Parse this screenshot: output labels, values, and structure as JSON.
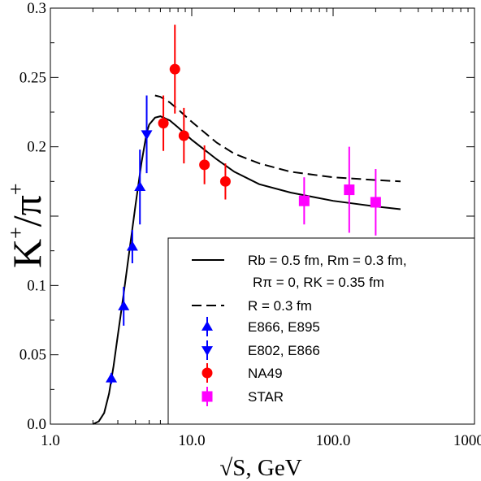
{
  "chart_data": {
    "type": "scatter",
    "xlabel": "√S, GeV",
    "ylabel_main": "K",
    "ylabel_denominator": "π",
    "ylabel_sup": "+",
    "x_scale": "log",
    "xlim": [
      1.0,
      1000.0
    ],
    "ylim": [
      0.0,
      0.3
    ],
    "x_ticks": [
      1.0,
      10.0,
      100.0,
      1000.0
    ],
    "x_tick_labels": [
      "1.0",
      "10.0",
      "100.0",
      "1000.0"
    ],
    "y_ticks": [
      0.0,
      0.05,
      0.1,
      0.15,
      0.2,
      0.25,
      0.3
    ],
    "y_tick_labels": [
      "0.0",
      "0.05",
      "0.1",
      "",
      "0.2",
      "0.25",
      "0.3"
    ],
    "grid": false,
    "legend_position": "bottom-right",
    "series": [
      {
        "name": "E866, E895",
        "marker": "triangle-up",
        "color": "#0000ff",
        "points": [
          {
            "x": 2.7,
            "y": 0.033,
            "err": 0.004
          },
          {
            "x": 3.3,
            "y": 0.085,
            "err": 0.014
          },
          {
            "x": 3.8,
            "y": 0.128,
            "err": 0.012
          },
          {
            "x": 4.3,
            "y": 0.171,
            "err": 0.027
          }
        ]
      },
      {
        "name": "E802, E866",
        "marker": "triangle-down",
        "color": "#0000ff",
        "points": [
          {
            "x": 4.8,
            "y": 0.209,
            "err": 0.028
          }
        ]
      },
      {
        "name": "NA49",
        "marker": "circle",
        "color": "#ff0000",
        "points": [
          {
            "x": 6.3,
            "y": 0.217,
            "err": 0.02
          },
          {
            "x": 7.6,
            "y": 0.256,
            "err": 0.032
          },
          {
            "x": 8.8,
            "y": 0.208,
            "err": 0.02
          },
          {
            "x": 12.3,
            "y": 0.187,
            "err": 0.014
          },
          {
            "x": 17.3,
            "y": 0.175,
            "err": 0.013
          }
        ]
      },
      {
        "name": "STAR",
        "marker": "square",
        "color": "#ff00ff",
        "points": [
          {
            "x": 62.4,
            "y": 0.161,
            "err": 0.017
          },
          {
            "x": 130.0,
            "y": 0.169,
            "err": 0.031
          },
          {
            "x": 200.0,
            "y": 0.16,
            "err": 0.024
          }
        ]
      }
    ],
    "curves": [
      {
        "name": "Rb = 0.5 fm, Rm = 0.3 fm, Rπ = 0, RK = 0.35 fm",
        "style": "solid",
        "x": [
          2.0,
          2.2,
          2.4,
          2.6,
          2.8,
          3.0,
          3.3,
          3.6,
          4.0,
          4.4,
          4.8,
          5.0,
          5.5,
          6.0,
          7.0,
          8.0,
          10.0,
          15.0,
          20.0,
          30.0,
          50.0,
          100.0,
          200.0,
          300.0
        ],
        "y": [
          0.0,
          0.002,
          0.008,
          0.022,
          0.042,
          0.064,
          0.094,
          0.123,
          0.158,
          0.188,
          0.21,
          0.216,
          0.221,
          0.222,
          0.219,
          0.214,
          0.205,
          0.191,
          0.182,
          0.173,
          0.167,
          0.161,
          0.157,
          0.155
        ]
      },
      {
        "name": "R = 0.3 fm",
        "style": "dashed",
        "x": [
          5.5,
          6.0,
          7.0,
          8.0,
          10.0,
          15.0,
          20.0,
          30.0,
          50.0,
          100.0,
          200.0,
          300.0
        ],
        "y": [
          0.237,
          0.236,
          0.232,
          0.227,
          0.218,
          0.203,
          0.195,
          0.188,
          0.182,
          0.178,
          0.176,
          0.175
        ]
      }
    ],
    "legend": {
      "entries": [
        {
          "style": "solid",
          "line1": "Rb = 0.5 fm, Rm = 0.3 fm,",
          "line2": "Rπ = 0, RK = 0.35 fm"
        },
        {
          "style": "dashed",
          "line1": "R = 0.3 fm"
        },
        {
          "style": "triangle-up",
          "color": "#0000ff",
          "line1": "E866, E895"
        },
        {
          "style": "triangle-down",
          "color": "#0000ff",
          "line1": "E802, E866"
        },
        {
          "style": "circle",
          "color": "#ff0000",
          "line1": "NA49"
        },
        {
          "style": "square",
          "color": "#ff00ff",
          "line1": "STAR"
        }
      ]
    }
  }
}
